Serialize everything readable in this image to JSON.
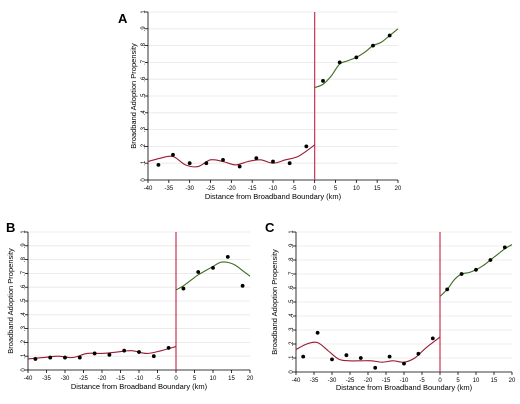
{
  "chart_data": [
    {
      "type": "scatter",
      "panel_label": "A",
      "title": "",
      "xlabel": "Distance from Broadband Boundary (km)",
      "ylabel": "Broadband Adoption Propensity",
      "xlim": [
        -40,
        20
      ],
      "ylim": [
        0,
        1
      ],
      "xticks": [
        "-40",
        "-35",
        "-30",
        "-25",
        "-20",
        "-15",
        "-10",
        "-5",
        "0",
        "5",
        "10",
        "15",
        "20"
      ],
      "yticks": [
        "0",
        ".1",
        ".2",
        ".3",
        ".4",
        ".5",
        ".6",
        ".7",
        ".8",
        ".9",
        "1"
      ],
      "cutoff": 0,
      "grid": true,
      "points": {
        "x": [
          -37.5,
          -34,
          -30,
          -26,
          -22,
          -18,
          -14,
          -10,
          -6,
          -2,
          2,
          6,
          10,
          14,
          18
        ],
        "y": [
          0.09,
          0.15,
          0.1,
          0.1,
          0.12,
          0.08,
          0.13,
          0.11,
          0.1,
          0.2,
          0.59,
          0.7,
          0.73,
          0.8,
          0.86
        ]
      },
      "fit_left": {
        "x": [
          -40,
          -37,
          -34,
          -31,
          -28,
          -25,
          -22,
          -19,
          -16,
          -13,
          -10,
          -7,
          -4,
          -1,
          0
        ],
        "y": [
          0.11,
          0.13,
          0.14,
          0.09,
          0.08,
          0.12,
          0.11,
          0.09,
          0.11,
          0.12,
          0.1,
          0.12,
          0.14,
          0.19,
          0.21
        ]
      },
      "fit_right": {
        "x": [
          0,
          2,
          4,
          6,
          8,
          10,
          12,
          14,
          16,
          18,
          20
        ],
        "y": [
          0.55,
          0.57,
          0.62,
          0.69,
          0.71,
          0.73,
          0.76,
          0.8,
          0.82,
          0.86,
          0.9
        ]
      }
    },
    {
      "type": "scatter",
      "panel_label": "B",
      "title": "",
      "xlabel": "Distance from Broadband Boundary (km)",
      "ylabel": "Broadband Adoption Propensity",
      "xlim": [
        -40,
        20
      ],
      "ylim": [
        0,
        1
      ],
      "xticks": [
        "-40",
        "-35",
        "-30",
        "-25",
        "-20",
        "-15",
        "-10",
        "-5",
        "0",
        "5",
        "10",
        "15",
        "20"
      ],
      "yticks": [
        "0",
        ".1",
        ".2",
        ".3",
        ".4",
        ".5",
        ".6",
        ".7",
        ".8",
        ".9",
        "1"
      ],
      "cutoff": 0,
      "grid": true,
      "points": {
        "x": [
          -38,
          -34,
          -30,
          -26,
          -22,
          -18,
          -14,
          -10,
          -6,
          -2,
          2,
          6,
          10,
          14,
          18
        ],
        "y": [
          0.08,
          0.09,
          0.09,
          0.09,
          0.12,
          0.11,
          0.14,
          0.13,
          0.1,
          0.16,
          0.59,
          0.71,
          0.74,
          0.82,
          0.61
        ]
      },
      "fit_left": {
        "x": [
          -40,
          -36,
          -32,
          -28,
          -24,
          -20,
          -16,
          -12,
          -8,
          -4,
          0
        ],
        "y": [
          0.08,
          0.09,
          0.1,
          0.09,
          0.12,
          0.12,
          0.13,
          0.14,
          0.12,
          0.14,
          0.17
        ]
      },
      "fit_right": {
        "x": [
          0,
          2,
          4,
          6,
          8,
          10,
          12,
          14,
          16,
          18,
          20
        ],
        "y": [
          0.58,
          0.61,
          0.65,
          0.69,
          0.72,
          0.75,
          0.78,
          0.78,
          0.76,
          0.72,
          0.68
        ]
      }
    },
    {
      "type": "scatter",
      "panel_label": "C",
      "title": "",
      "xlabel": "Distance from Broadband Boundary (km)",
      "ylabel": "Broadband Adoption Propensity",
      "xlim": [
        -40,
        20
      ],
      "ylim": [
        0,
        1
      ],
      "xticks": [
        "-40",
        "-35",
        "-30",
        "-25",
        "-20",
        "-15",
        "-10",
        "-5",
        "0",
        "5",
        "10",
        "15",
        "20"
      ],
      "yticks": [
        "0",
        ".1",
        ".2",
        ".3",
        ".4",
        ".5",
        ".6",
        ".7",
        ".8",
        ".9",
        "1"
      ],
      "cutoff": 0,
      "grid": true,
      "points": {
        "x": [
          -38,
          -34,
          -30,
          -26,
          -22,
          -18,
          -14,
          -10,
          -6,
          -2,
          2,
          6,
          10,
          14,
          18
        ],
        "y": [
          0.11,
          0.28,
          0.09,
          0.12,
          0.1,
          0.03,
          0.11,
          0.06,
          0.13,
          0.24,
          0.59,
          0.7,
          0.73,
          0.8,
          0.89
        ]
      },
      "fit_left": {
        "x": [
          -40,
          -37,
          -34,
          -31,
          -28,
          -25,
          -22,
          -19,
          -16,
          -13,
          -10,
          -7,
          -4,
          -1,
          0
        ],
        "y": [
          0.16,
          0.2,
          0.21,
          0.15,
          0.09,
          0.08,
          0.08,
          0.08,
          0.07,
          0.08,
          0.07,
          0.1,
          0.17,
          0.23,
          0.25
        ]
      },
      "fit_right": {
        "x": [
          0,
          2,
          4,
          6,
          8,
          10,
          12,
          14,
          16,
          18,
          20
        ],
        "y": [
          0.54,
          0.59,
          0.66,
          0.7,
          0.71,
          0.73,
          0.76,
          0.8,
          0.84,
          0.88,
          0.91
        ]
      }
    }
  ]
}
